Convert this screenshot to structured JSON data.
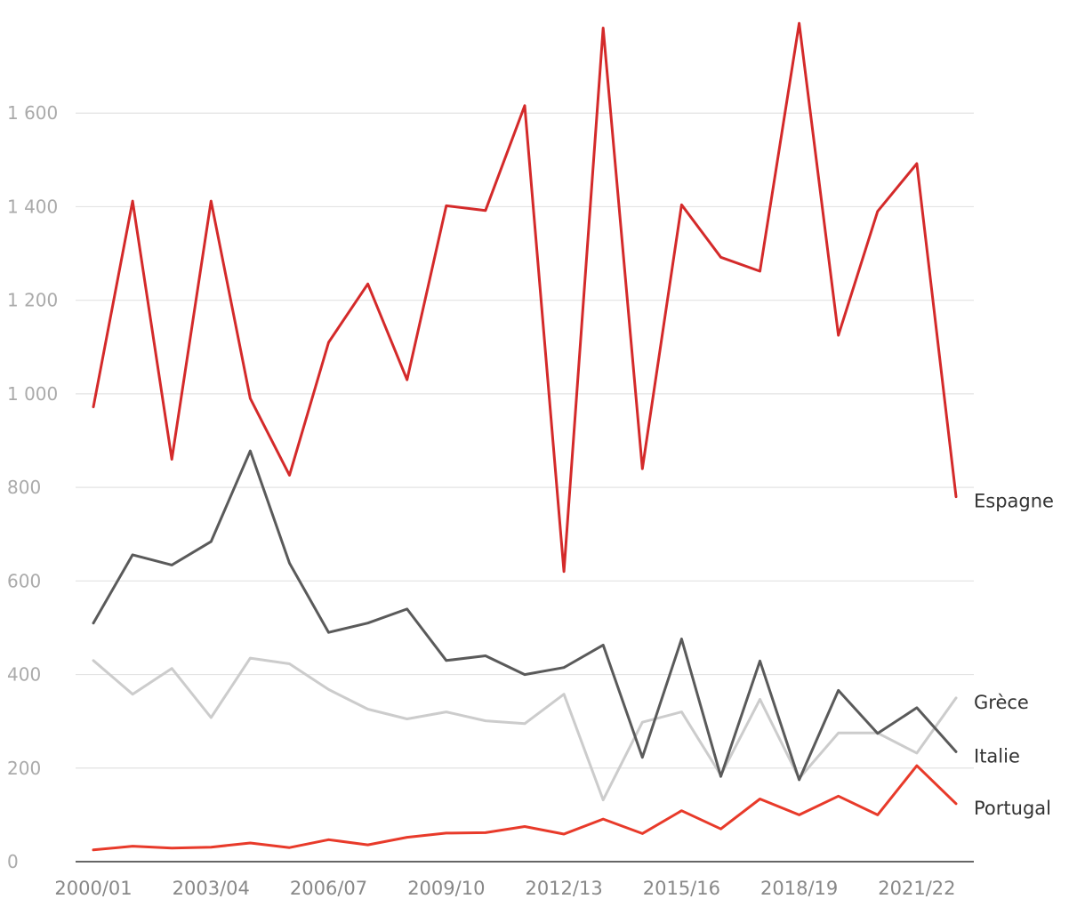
{
  "chart_data": {
    "type": "line",
    "title": "",
    "xlabel": "",
    "ylabel": "",
    "ylim": [
      0,
      1800
    ],
    "yticks": [
      0,
      200,
      400,
      600,
      800,
      1000,
      1200,
      1400,
      1600
    ],
    "ytick_labels": [
      "0",
      "200",
      "400",
      "600",
      "800",
      "1 000",
      "1 200",
      "1 400",
      "1 600"
    ],
    "grid": true,
    "legend": "direct labels at right end of lines",
    "x": [
      "2000/01",
      "2001/02",
      "2002/03",
      "2003/04",
      "2004/05",
      "2005/06",
      "2006/07",
      "2007/08",
      "2008/09",
      "2009/10",
      "2010/11",
      "2011/12",
      "2012/13",
      "2013/14",
      "2014/15",
      "2015/16",
      "2016/17",
      "2017/18",
      "2018/19",
      "2019/20",
      "2020/21",
      "2021/22",
      "2022/23"
    ],
    "xtick_labels": [
      "2000/01",
      "2003/04",
      "2006/07",
      "2009/10",
      "2012/13",
      "2015/16",
      "2018/19",
      "2021/22"
    ],
    "series": [
      {
        "name": "Grèce",
        "color": "#cccccc",
        "values": [
          430,
          358,
          413,
          308,
          435,
          423,
          368,
          326,
          305,
          320,
          301,
          295,
          358,
          132,
          298,
          320,
          185,
          347,
          178,
          275,
          275,
          232,
          350
        ]
      },
      {
        "name": "Italie",
        "color": "#5a5a5a",
        "values": [
          510,
          656,
          634,
          684,
          878,
          638,
          490,
          510,
          540,
          430,
          440,
          400,
          415,
          463,
          223,
          476,
          182,
          429,
          175,
          366,
          274,
          329,
          235
        ]
      },
      {
        "name": "Portugal",
        "color": "#e83a2a",
        "values": [
          25,
          33,
          29,
          31,
          40,
          30,
          47,
          36,
          52,
          61,
          62,
          75,
          59,
          91,
          60,
          109,
          70,
          134,
          100,
          140,
          100,
          205,
          124
        ]
      },
      {
        "name": "Espagne",
        "color": "#d42a2a",
        "values": [
          972,
          1412,
          860,
          1412,
          990,
          826,
          1110,
          1235,
          1030,
          1402,
          1392,
          1616,
          620,
          1782,
          840,
          1404,
          1292,
          1262,
          1792,
          1125,
          1390,
          1492,
          780
        ]
      }
    ]
  }
}
